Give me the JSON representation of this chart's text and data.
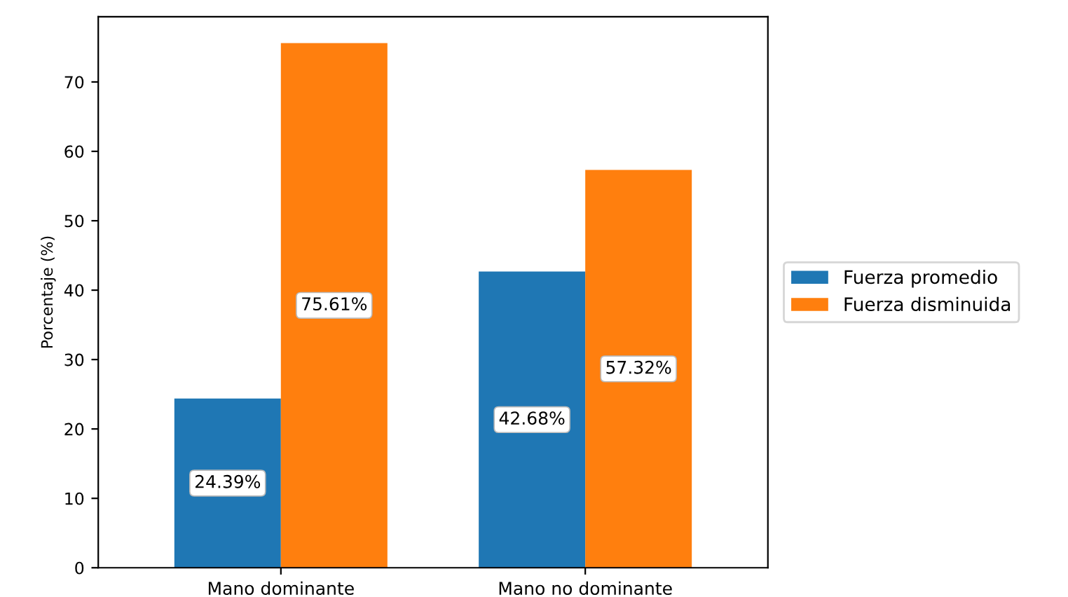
{
  "chart_data": {
    "type": "bar",
    "ylabel": "Porcentaje (%)",
    "categories": [
      "Mano dominante",
      "Mano no dominante"
    ],
    "series": [
      {
        "name": "Fuerza promedio",
        "color": "#1f77b4",
        "values": [
          24.39,
          42.68
        ],
        "value_labels": [
          "24.39%",
          "42.68%"
        ]
      },
      {
        "name": "Fuerza disminuida",
        "color": "#ff7f0e",
        "values": [
          75.61,
          57.32
        ],
        "value_labels": [
          "75.61%",
          "57.32%"
        ]
      }
    ],
    "ylim": [
      0,
      79.4
    ],
    "yticks": [
      0,
      10,
      20,
      30,
      40,
      50,
      60,
      70
    ],
    "grid": false,
    "legend": "right"
  }
}
